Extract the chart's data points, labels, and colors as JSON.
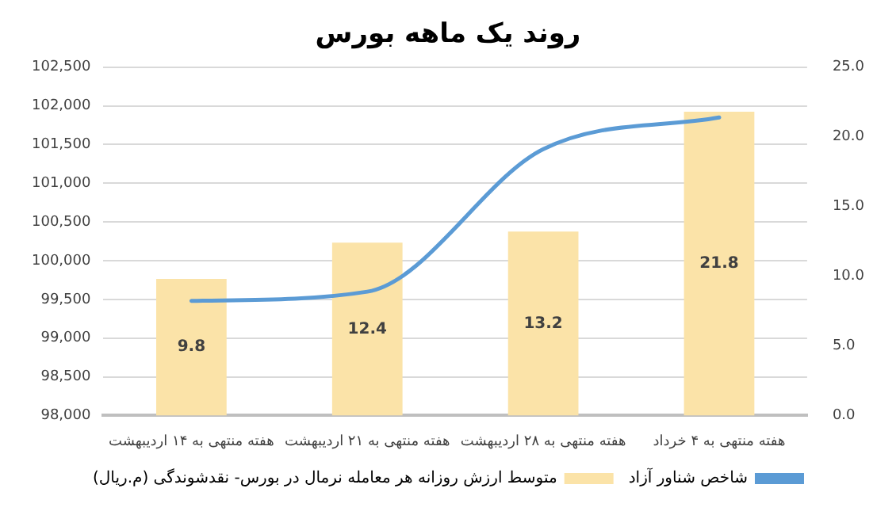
{
  "chart_data": {
    "type": "bar",
    "title": "روند یک ماهه بورس",
    "categories": [
      "هفته منتهی به ۱۴ اردیبهشت",
      "هفته منتهی به ۲۱ اردیبهشت",
      "هفته منتهی به ۲۸ اردیبهشت",
      "هفته منتهی به ۴ خرداد"
    ],
    "series": [
      {
        "name": "شاخص شناور آزاد",
        "type": "line",
        "color": "#5b9bd5",
        "values": [
          99480,
          99600,
          101440,
          101850
        ]
      },
      {
        "name": "متوسط ارزش روزانه هر معامله نرمال در بورس- نقدشوندگی (م.ریال)",
        "axis": "y2",
        "color": "#fbe3a8",
        "values": [
          9.8,
          12.4,
          13.2,
          21.8
        ],
        "value_labels": [
          "9.8",
          "12.4",
          "13.2",
          "21.8"
        ]
      }
    ],
    "ylim": [
      98000,
      102500
    ],
    "yticks": [
      {
        "value": 98000,
        "label": "98,000"
      },
      {
        "value": 98500,
        "label": "98,500"
      },
      {
        "value": 99000,
        "label": "99,000"
      },
      {
        "value": 99500,
        "label": "99,500"
      },
      {
        "value": 100000,
        "label": "100,000"
      },
      {
        "value": 100500,
        "label": "100,500"
      },
      {
        "value": 101000,
        "label": "101,000"
      },
      {
        "value": 101500,
        "label": "101,500"
      },
      {
        "value": 102000,
        "label": "102,000"
      },
      {
        "value": 102500,
        "label": "102,500"
      }
    ],
    "y2lim": [
      0,
      25
    ],
    "y2ticks": [
      {
        "value": 0,
        "label": "0.0"
      },
      {
        "value": 5,
        "label": "5.0"
      },
      {
        "value": 10,
        "label": "10.0"
      },
      {
        "value": 15,
        "label": "15.0"
      },
      {
        "value": 20,
        "label": "20.0"
      },
      {
        "value": 25,
        "label": "25.0"
      }
    ],
    "grid": "y",
    "legend": "bottom",
    "marker": "none"
  }
}
